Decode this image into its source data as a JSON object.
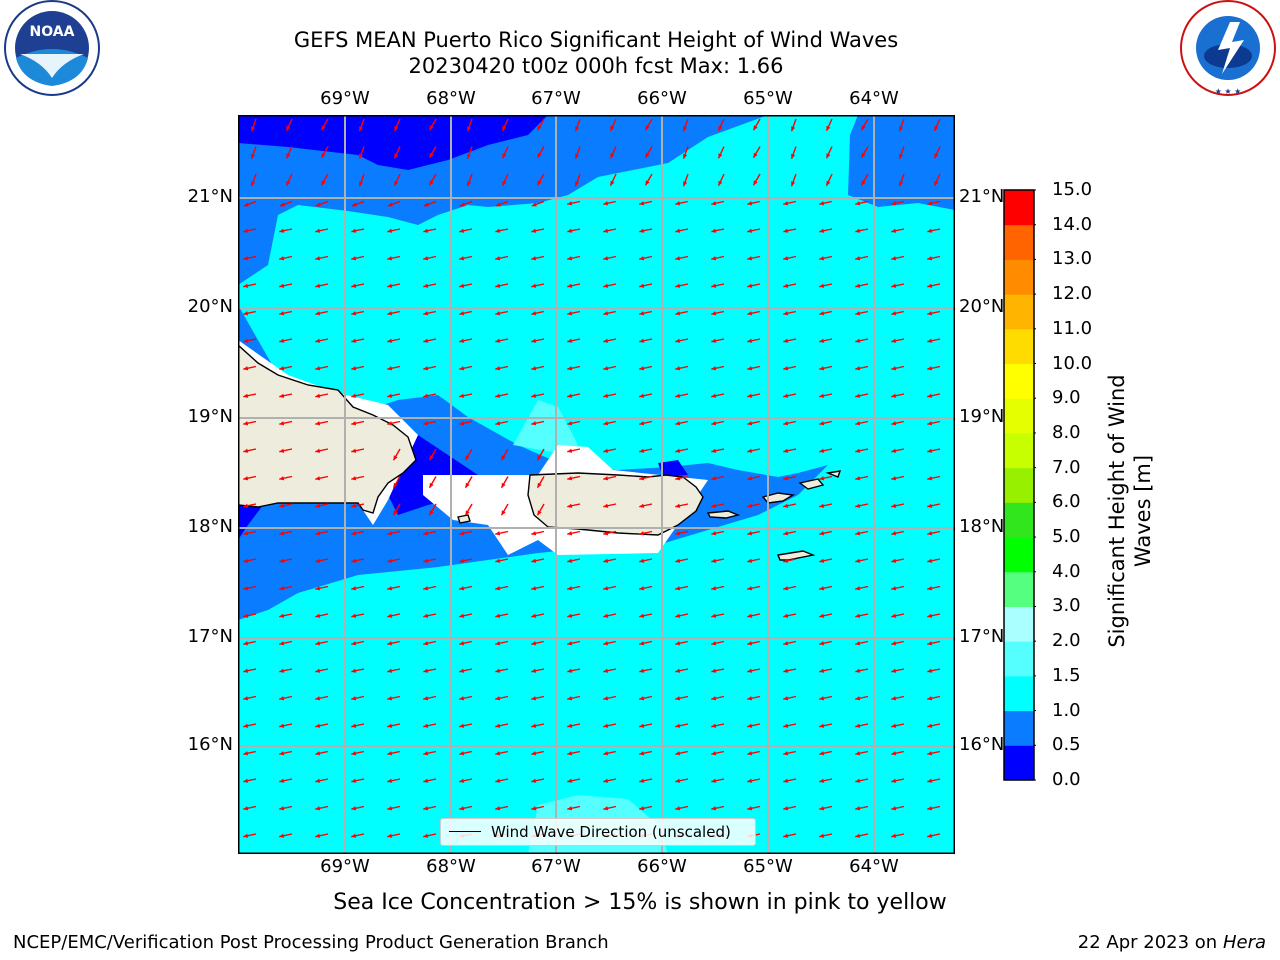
{
  "header": {
    "title_line1": "GEFS MEAN Puerto Rico Significant Height of Wind Waves",
    "title_line2": "20230420 t00z 000h fcst   Max: 1.66"
  },
  "logos": {
    "noaa_text": "NOAA",
    "noaa_ring": "NATIONAL OCEANIC AND ATMOSPHERIC ADMINISTRATION · U.S. DEPARTMENT OF COMMERCE",
    "nws_ring": "NATIONAL WEATHER SERVICE"
  },
  "map": {
    "lon_labels": [
      "69°W",
      "68°W",
      "67°W",
      "66°W",
      "65°W",
      "64°W"
    ],
    "lat_labels": [
      "21°N",
      "20°N",
      "19°N",
      "18°N",
      "17°N",
      "16°N"
    ],
    "colors": {
      "ocean_0_0_5": "#0000ff",
      "ocean_0_5_1": "#0a7cff",
      "ocean_1_1_5": "#00ffff",
      "ocean_1_5_2": "#55ffff",
      "land": "#eeecdc",
      "white": "#ffffff",
      "arrow": "#ff0000",
      "grid": "#b0b0b0"
    },
    "legend_label": "Wind Wave Direction (unscaled)"
  },
  "colorbar": {
    "title": "Significant Height of Wind Waves [m]",
    "title_line1": "Significant Height of Wind",
    "title_line2": "Waves [m]",
    "tick_labels": [
      "0.0",
      "0.5",
      "1.0",
      "1.5",
      "2.0",
      "3.0",
      "4.0",
      "5.0",
      "6.0",
      "7.0",
      "8.0",
      "9.0",
      "10.0",
      "11.0",
      "12.0",
      "13.0",
      "14.0",
      "15.0"
    ],
    "colors": [
      "#0000ff",
      "#0a7cff",
      "#00ffff",
      "#55ffff",
      "#aaffff",
      "#55ff80",
      "#00ff00",
      "#32e61e",
      "#96f000",
      "#c8ff00",
      "#e6ff00",
      "#ffff00",
      "#ffdc00",
      "#ffb400",
      "#ff8c00",
      "#ff6400",
      "#ff3200",
      "#ff0000"
    ]
  },
  "note": "Sea Ice Concentration > 15% is shown in pink to yellow",
  "footer": {
    "left": "NCEP/EMC/Verification Post Processing Product Generation Branch",
    "date": "22 Apr 2023 on ",
    "host": "Hera"
  }
}
